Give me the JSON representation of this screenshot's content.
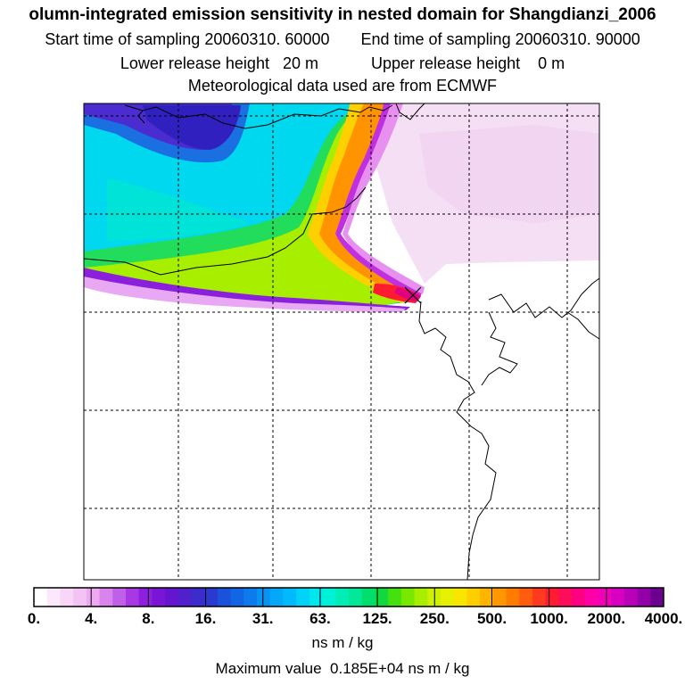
{
  "header": {
    "title": "olumn-integrated emission sensitivity in nested domain for Shangdianzi_2006",
    "start_label": "Start time of sampling",
    "start_value": "20060310. 60000",
    "end_label": "End time of sampling",
    "end_value": "20060310. 90000",
    "lower_label": "Lower release height",
    "lower_value": "20 m",
    "upper_label": "Upper release height",
    "upper_value": "0 m",
    "met_line": "Meteorological data used are from ECMWF"
  },
  "colorbar": {
    "labels": [
      "0.",
      "4.",
      "8.",
      "16.",
      "31.",
      "63.",
      "125.",
      "250.",
      "500.",
      "1000.",
      "2000.",
      "4000."
    ],
    "colors": [
      "#ffffff",
      "#fbe9fb",
      "#f7d6f7",
      "#f3c4f3",
      "#edaaf0",
      "#d884ec",
      "#c060e8",
      "#a838e4",
      "#8f1fde",
      "#7a14d6",
      "#6514d0",
      "#5020cc",
      "#3c2ccc",
      "#2a3ad0",
      "#1a52dc",
      "#1066e4",
      "#0c7cec",
      "#0892f2",
      "#04a8f8",
      "#00bafc",
      "#00d2f8",
      "#00e8ee",
      "#00f2d6",
      "#00eeb6",
      "#00e898",
      "#00de6e",
      "#10d83e",
      "#44e010",
      "#78e800",
      "#a8ee00",
      "#ccf000",
      "#e6f000",
      "#f8e600",
      "#ffce00",
      "#ffb400",
      "#ff9800",
      "#ff7c00",
      "#ff5c10",
      "#ff3a20",
      "#ff1c30",
      "#ff0c5a",
      "#ff0082",
      "#ff00a8",
      "#f000b8",
      "#d800c0",
      "#b800b8",
      "#9400a8",
      "#6c0090"
    ]
  },
  "units": "ns m / kg",
  "max_label": "Maximum value",
  "max_value": "0.185E+04 ns m / kg"
}
